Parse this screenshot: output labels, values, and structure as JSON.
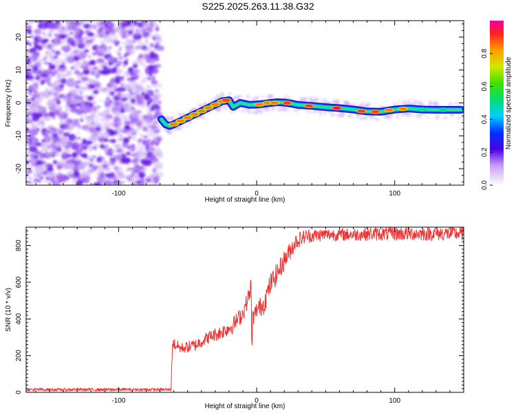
{
  "title": "S225.2025.263.11.38.G32",
  "chart_data": [
    {
      "type": "heatmap",
      "title": "S225.2025.263.11.38.G32",
      "xlabel": "Height of straight line (km)",
      "ylabel": "Frequency (Hz)",
      "xlim": [
        -167,
        150
      ],
      "ylim": [
        -25,
        25
      ],
      "xticks": [
        -100,
        0,
        100
      ],
      "yticks": [
        -20,
        -10,
        0,
        10,
        20
      ],
      "noise_region_x": [
        -167,
        -70
      ],
      "ridge": {
        "x": [
          -69,
          -66,
          -63,
          -60,
          -55,
          -50,
          -45,
          -40,
          -35,
          -30,
          -25,
          -20,
          -17,
          -12,
          -5,
          0,
          5,
          10,
          15,
          20,
          25,
          30,
          40,
          50,
          60,
          70,
          75,
          80,
          90,
          100,
          110,
          120,
          130,
          140,
          148
        ],
        "y": [
          -5,
          -6.5,
          -7,
          -6.5,
          -5.5,
          -4.5,
          -3.5,
          -2.5,
          -1.5,
          -0.5,
          0.5,
          0.8,
          -1.2,
          0,
          -0.6,
          -0.5,
          -0.3,
          0,
          0.2,
          0.1,
          -0.2,
          -0.6,
          -0.9,
          -1.3,
          -1.6,
          -2,
          -2.3,
          -2.6,
          -2.7,
          -2,
          -1.7,
          -2,
          -2.1,
          -2.1,
          -2.1
        ]
      },
      "peaks": [
        {
          "x": -60,
          "y": -6.5,
          "a": 0.85
        },
        {
          "x": -55,
          "y": -5.5,
          "a": 0.85
        },
        {
          "x": -50,
          "y": -4.5,
          "a": 0.85
        },
        {
          "x": -45,
          "y": -3.5,
          "a": 0.85
        },
        {
          "x": -40,
          "y": -2.5,
          "a": 0.85
        },
        {
          "x": -35,
          "y": -1.5,
          "a": 0.85
        },
        {
          "x": -30,
          "y": -0.5,
          "a": 0.85
        },
        {
          "x": -25,
          "y": 0.5,
          "a": 0.85
        },
        {
          "x": -22,
          "y": 0.8,
          "a": 0.9
        },
        {
          "x": 2,
          "y": -0.5,
          "a": 0.85
        },
        {
          "x": 8,
          "y": 0,
          "a": 0.85
        },
        {
          "x": 13,
          "y": 0,
          "a": 0.85
        },
        {
          "x": 22,
          "y": 0,
          "a": 0.9
        },
        {
          "x": 38,
          "y": -0.9,
          "a": 0.9
        },
        {
          "x": 58,
          "y": -1.6,
          "a": 0.95
        },
        {
          "x": 76,
          "y": -2.5,
          "a": 0.9
        },
        {
          "x": 86,
          "y": -2.7,
          "a": 0.9
        },
        {
          "x": 96,
          "y": -2.2,
          "a": 0.85
        },
        {
          "x": 106,
          "y": -1.8,
          "a": 0.85
        },
        {
          "x": 120,
          "y": -2,
          "a": 0.55
        },
        {
          "x": 135,
          "y": -2.1,
          "a": 0.55
        }
      ],
      "colorbar": {
        "label": "Normalized spectral amplitude",
        "range": [
          0,
          1
        ],
        "ticks": [
          0.0,
          0.2,
          0.4,
          0.6,
          0.8
        ],
        "tick_labels": [
          "0.0",
          "0.2",
          "0.4",
          "0.6",
          "0.8"
        ]
      }
    },
    {
      "type": "line",
      "xlabel": "Height of straight line (km)",
      "ylabel": "SNR (10 * v/v)",
      "xlim": [
        -167,
        150
      ],
      "ylim": [
        0,
        900
      ],
      "xticks": [
        -100,
        0,
        100
      ],
      "yticks": [
        0,
        200,
        400,
        600,
        800
      ],
      "series": [
        {
          "name": "SNR",
          "color": "#ee3030",
          "x": [
            -167,
            -62,
            -61,
            -55,
            -45,
            -35,
            -25,
            -18,
            -10,
            -5,
            -4,
            -3.5,
            -3,
            -2,
            0,
            5,
            10,
            15,
            20,
            25,
            28,
            35,
            50,
            70,
            100,
            150
          ],
          "y": [
            15,
            15,
            270,
            240,
            255,
            300,
            330,
            360,
            430,
            540,
            600,
            190,
            420,
            410,
            450,
            480,
            590,
            650,
            720,
            780,
            820,
            850,
            860,
            860,
            865,
            865
          ],
          "noise": [
            8,
            8,
            35,
            30,
            35,
            35,
            40,
            45,
            45,
            50,
            30,
            20,
            40,
            45,
            50,
            60,
            60,
            60,
            55,
            50,
            45,
            40,
            35,
            35,
            40,
            40
          ]
        }
      ]
    }
  ]
}
